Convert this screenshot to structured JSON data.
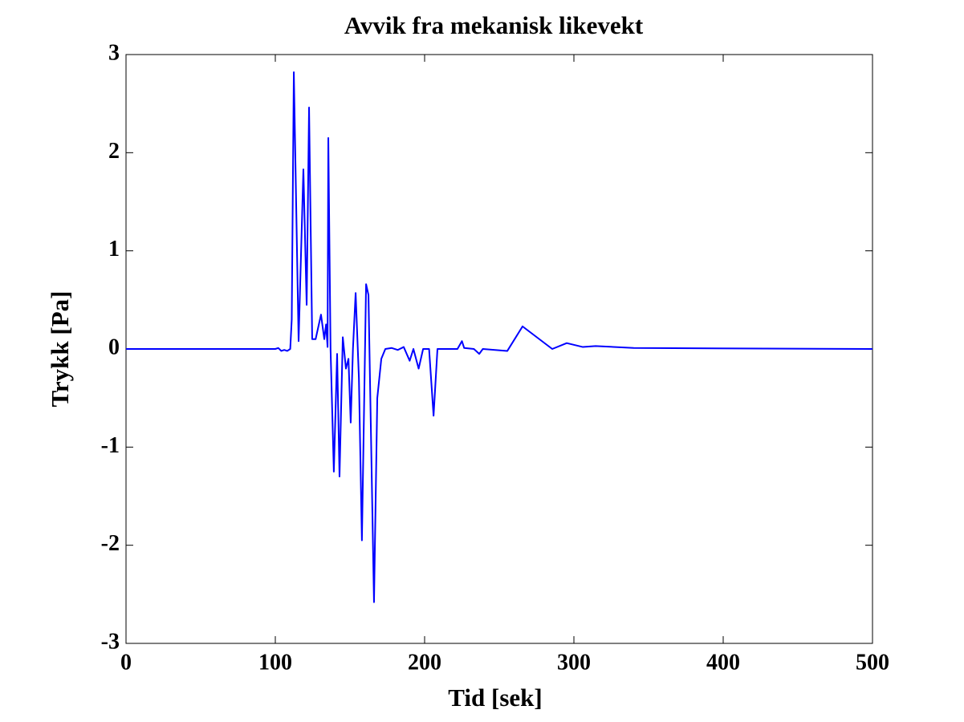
{
  "chart_data": {
    "type": "line",
    "title": "Avvik fra mekanisk likevekt",
    "x_label": "Tid [sek]",
    "y_label": "Trykk [Pa]",
    "x": [
      0,
      100,
      102,
      104,
      106,
      108,
      110,
      111,
      112.4,
      115.6,
      118.8,
      121,
      122.6,
      124.7,
      127,
      130.6,
      132.8,
      134,
      135,
      135.5,
      137,
      139.2,
      141.4,
      143,
      145.2,
      147.3,
      149,
      150.5,
      152,
      153.8,
      156,
      158,
      160.8,
      162.4,
      166.1,
      168.3,
      171,
      173.7,
      178,
      182,
      186,
      190,
      192.5,
      196,
      199,
      203,
      206,
      208.6,
      222,
      225,
      226.5,
      233,
      236.6,
      239,
      255.4,
      265.6,
      285.5,
      295.2,
      306,
      314.5,
      340,
      500
    ],
    "series": [
      {
        "name": "Trykk",
        "color": "#0000ff",
        "values": [
          0,
          0,
          0.01,
          -0.02,
          -0.01,
          -0.02,
          0,
          0.3,
          2.82,
          0.08,
          1.83,
          0.45,
          2.46,
          0.1,
          0.1,
          0.35,
          0.1,
          0.25,
          0.02,
          2.15,
          0,
          -1.25,
          -0.05,
          -1.3,
          0.12,
          -0.2,
          -0.1,
          -0.75,
          0,
          0.57,
          -0.3,
          -1.95,
          0.66,
          0.55,
          -2.58,
          -0.5,
          -0.1,
          0,
          0.01,
          -0.01,
          0.02,
          -0.12,
          0,
          -0.2,
          0,
          0,
          -0.68,
          0,
          0,
          0.08,
          0.01,
          0,
          -0.05,
          0,
          -0.02,
          0.23,
          0,
          0.06,
          0.02,
          0.03,
          0.01,
          0
        ]
      }
    ],
    "xlim": [
      0,
      500
    ],
    "xticks": [
      0,
      100,
      200,
      300,
      400,
      500
    ],
    "ylim": [
      -3,
      3
    ],
    "yticks": [
      -3,
      -2,
      -1,
      0,
      1,
      2,
      3
    ],
    "grid": false
  }
}
